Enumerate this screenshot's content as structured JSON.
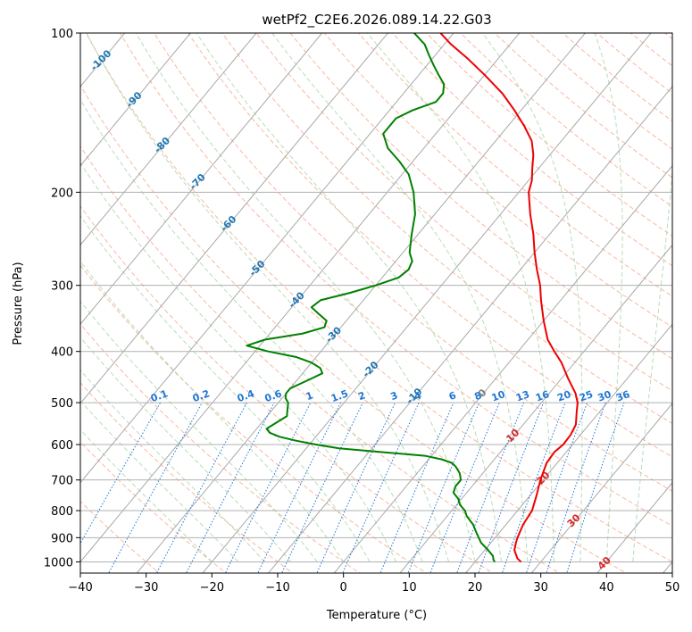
{
  "chart_data": {
    "type": "line",
    "chart_kind": "skew-T log-P diagram",
    "title": "wetPf2_C2E6.2026.089.14.22.G03",
    "xlabel": "Temperature (°C)",
    "ylabel": "Pressure (hPa)",
    "xlim": [
      -40,
      50
    ],
    "ylim": [
      1050,
      100
    ],
    "yscale": "log",
    "grid": true,
    "x_ticks": [
      "−40",
      "−30",
      "−20",
      "−10",
      "0",
      "10",
      "20",
      "30",
      "40",
      "50"
    ],
    "y_ticks": [
      "100",
      "200",
      "300",
      "400",
      "500",
      "600",
      "700",
      "800",
      "900",
      "1000"
    ],
    "colors": {
      "temperature": "#ee0000",
      "dewpoint": "#008000",
      "isotherm": "#a8a8a8",
      "dry_adiabat": "#f4a282",
      "moist_adiabat": "#9fd19f",
      "mixing_ratio": "#1f77d4",
      "isotherm_label": "#1f77b4",
      "warm_isotherm_label": "#d62728",
      "zero_label": "#7f7f7f"
    },
    "series": [
      {
        "role": "temperature",
        "p": [
          1000,
          985,
          950,
          920,
          900,
          875,
          850,
          800,
          750,
          700,
          650,
          620,
          600,
          575,
          550,
          520,
          500,
          480,
          450,
          420,
          400,
          380,
          350,
          320,
          300,
          280,
          260,
          240,
          220,
          200,
          190,
          180,
          170,
          160,
          150,
          140,
          130,
          120,
          112,
          105,
          100
        ],
        "t": [
          27,
          26,
          24.5,
          23.8,
          23.4,
          23.0,
          22.6,
          22.2,
          21.0,
          19.6,
          18.4,
          18.2,
          18.6,
          18.5,
          18.0,
          16.5,
          15.5,
          14.0,
          11.0,
          8.0,
          5.5,
          3.0,
          0.0,
          -3.0,
          -5.0,
          -7.5,
          -10.0,
          -12.5,
          -15.5,
          -18.5,
          -19.5,
          -21.0,
          -22.5,
          -24.5,
          -27.5,
          -31.0,
          -35.0,
          -40.0,
          -44.5,
          -49.0,
          -52.0
        ]
      },
      {
        "role": "dewpoint",
        "p": [
          1000,
          990,
          975,
          950,
          920,
          890,
          870,
          850,
          820,
          800,
          780,
          760,
          740,
          720,
          700,
          680,
          660,
          650,
          640,
          630,
          620,
          610,
          600,
          590,
          580,
          570,
          560,
          550,
          540,
          530,
          520,
          510,
          500,
          490,
          480,
          470,
          460,
          450,
          440,
          430,
          420,
          410,
          400,
          390,
          380,
          370,
          360,
          350,
          340,
          330,
          320,
          310,
          300,
          290,
          280,
          270,
          260,
          240,
          220,
          200,
          185,
          175,
          165,
          155,
          145,
          140,
          135,
          130,
          125,
          120,
          115,
          110,
          105,
          100
        ],
        "t": [
          23,
          22.5,
          22,
          20.5,
          18.5,
          17,
          16,
          15,
          13,
          12,
          10.5,
          9.5,
          8,
          7.5,
          7.5,
          6.5,
          5,
          4,
          2,
          -1,
          -8,
          -15,
          -19,
          -22.5,
          -25.5,
          -27.5,
          -28.5,
          -28,
          -27.5,
          -27,
          -27.5,
          -28,
          -28.5,
          -29.5,
          -30,
          -30,
          -29,
          -28,
          -27,
          -28,
          -30,
          -33,
          -38,
          -42,
          -40,
          -35,
          -32.5,
          -33,
          -35,
          -37,
          -36.5,
          -33,
          -30,
          -27.5,
          -27,
          -27.5,
          -29,
          -31,
          -33,
          -36,
          -39,
          -42,
          -45.5,
          -48,
          -48,
          -46.5,
          -44,
          -44,
          -45,
          -47,
          -49,
          -51,
          -53,
          -56
        ]
      }
    ],
    "isotherm_labels": [
      "-100",
      "-90",
      "-80",
      "-70",
      "-60",
      "-50",
      "-40",
      "-30",
      "-20",
      "-10",
      "0",
      "10",
      "20",
      "30",
      "40"
    ],
    "mixing_ratio_labels": [
      "0.1",
      "0.2",
      "0.4",
      "0.6",
      "1",
      "1.5",
      "2",
      "3",
      "4",
      "6",
      "8",
      "10",
      "13",
      "16",
      "20",
      "25",
      "30",
      "36"
    ]
  }
}
